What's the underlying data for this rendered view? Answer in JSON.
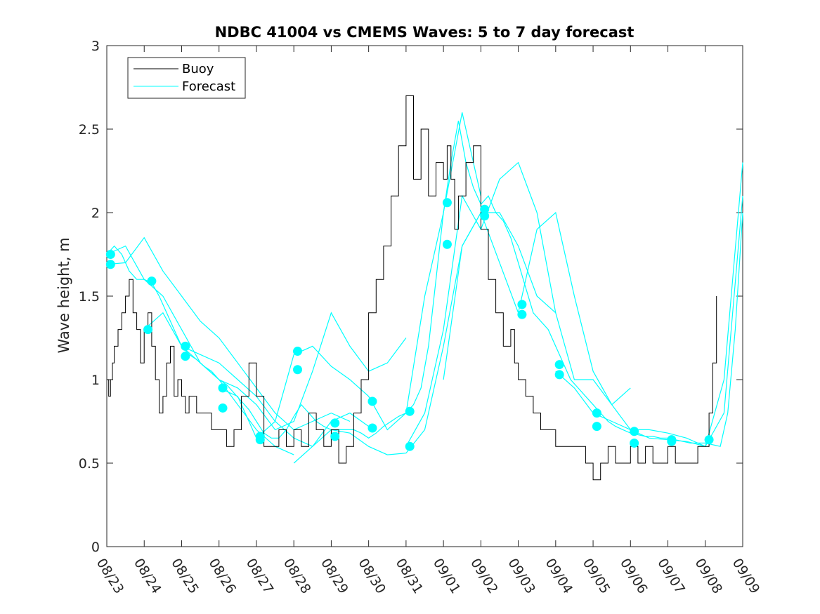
{
  "chart_data": {
    "type": "line",
    "title": "NDBC 41004 vs CMEMS Waves: 5 to 7 day forecast",
    "xlabel": "",
    "ylabel": "Wave height, m",
    "xlim": [
      0,
      17
    ],
    "ylim": [
      0,
      3
    ],
    "yticks": [
      0,
      0.5,
      1,
      1.5,
      2,
      2.5,
      3
    ],
    "ytick_labels": [
      "0",
      "0.5",
      "1",
      "1.5",
      "2",
      "2.5",
      "3"
    ],
    "xtick_labels": [
      "08/23",
      "08/24",
      "08/25",
      "08/26",
      "08/27",
      "08/28",
      "08/29",
      "08/30",
      "08/31",
      "09/01",
      "09/02",
      "09/03",
      "09/04",
      "09/05",
      "09/06",
      "09/07",
      "09/08",
      "09/09"
    ],
    "colors": {
      "buoy": "#000000",
      "forecast": "#00ffff",
      "axis": "#262626"
    },
    "legend": {
      "placement": "top-left",
      "entries": [
        "Buoy",
        "Forecast"
      ]
    },
    "series": [
      {
        "name": "Buoy",
        "x": [
          0,
          0.05,
          0.1,
          0.15,
          0.2,
          0.3,
          0.4,
          0.5,
          0.6,
          0.7,
          0.8,
          0.9,
          1.0,
          1.1,
          1.2,
          1.3,
          1.4,
          1.5,
          1.6,
          1.7,
          1.8,
          1.9,
          2.0,
          2.1,
          2.2,
          2.3,
          2.4,
          2.5,
          2.6,
          2.8,
          3.0,
          3.2,
          3.4,
          3.6,
          3.8,
          4.0,
          4.2,
          4.4,
          4.6,
          4.8,
          5.0,
          5.2,
          5.4,
          5.6,
          5.8,
          6.0,
          6.2,
          6.4,
          6.6,
          6.8,
          7.0,
          7.2,
          7.4,
          7.6,
          7.8,
          8.0,
          8.2,
          8.4,
          8.6,
          8.8,
          9.0,
          9.1,
          9.2,
          9.3,
          9.4,
          9.6,
          9.8,
          10.0,
          10.2,
          10.4,
          10.6,
          10.8,
          10.9,
          11.0,
          11.2,
          11.4,
          11.6,
          11.8,
          12.0,
          12.2,
          12.4,
          12.6,
          12.8,
          13.0,
          13.2,
          13.4,
          13.6,
          13.8,
          14.0,
          14.2,
          14.4,
          14.6,
          14.8,
          15.0,
          15.2,
          15.4,
          15.6,
          15.8,
          16.0,
          16.1,
          16.2,
          16.3
        ],
        "values": [
          1.0,
          0.9,
          1.0,
          1.1,
          1.2,
          1.3,
          1.4,
          1.5,
          1.6,
          1.4,
          1.3,
          1.1,
          1.3,
          1.4,
          1.2,
          1.0,
          0.8,
          0.9,
          1.1,
          1.2,
          0.9,
          1.0,
          0.9,
          0.8,
          0.9,
          0.9,
          0.8,
          0.8,
          0.8,
          0.7,
          0.7,
          0.6,
          0.7,
          0.9,
          1.1,
          0.9,
          0.6,
          0.6,
          0.7,
          0.6,
          0.7,
          0.6,
          0.8,
          0.7,
          0.6,
          0.7,
          0.5,
          0.6,
          0.8,
          1.0,
          1.4,
          1.6,
          1.8,
          2.1,
          2.4,
          2.7,
          2.2,
          2.5,
          2.1,
          2.3,
          2.2,
          2.4,
          2.2,
          1.9,
          2.1,
          2.3,
          2.4,
          1.9,
          1.6,
          1.4,
          1.2,
          1.3,
          1.1,
          1.0,
          0.9,
          0.8,
          0.7,
          0.7,
          0.6,
          0.6,
          0.6,
          0.6,
          0.5,
          0.4,
          0.5,
          0.6,
          0.5,
          0.5,
          0.6,
          0.5,
          0.6,
          0.5,
          0.5,
          0.6,
          0.5,
          0.5,
          0.5,
          0.6,
          0.6,
          0.8,
          1.1,
          1.5
        ]
      },
      {
        "name": "Forecast",
        "x": [
          0,
          0.2,
          0.4,
          0.6,
          0.8,
          1.0,
          1.2,
          1.4,
          1.6,
          1.8,
          2.0,
          2.2,
          2.4,
          2.6,
          2.8,
          3.0,
          3.2,
          3.4,
          3.6,
          3.8,
          4.0,
          4.2,
          4.4,
          4.6,
          4.8,
          5.0,
          5.2,
          5.4,
          5.6,
          5.8,
          6.0,
          6.2,
          6.4,
          6.6,
          6.8,
          7.0,
          7.2,
          7.4,
          7.6,
          7.8,
          8.0,
          8.2,
          8.4,
          8.6,
          8.8,
          9.0,
          9.2,
          9.4,
          9.6,
          9.8,
          10.0,
          10.2,
          10.4,
          10.6,
          10.8,
          11.0,
          11.2,
          11.4,
          11.6,
          11.8,
          12.0,
          12.2,
          12.4,
          12.6,
          12.8,
          13.0,
          13.2,
          13.4,
          13.6,
          13.8,
          14.0,
          14.2,
          14.4,
          14.6,
          14.8,
          15.0,
          15.2,
          15.4,
          15.6,
          15.8,
          16.0,
          16.2,
          16.4,
          16.6,
          16.8,
          17.0
        ],
        "values": [
          1.75,
          1.8,
          1.75,
          1.65,
          1.6,
          1.6,
          1.58,
          1.5,
          1.4,
          1.3,
          1.2,
          1.15,
          1.12,
          1.08,
          1.05,
          1.0,
          0.97,
          0.92,
          0.87,
          0.82,
          0.75,
          0.68,
          0.65,
          0.65,
          0.7,
          0.78,
          0.85,
          0.8,
          0.75,
          0.72,
          0.7,
          0.7,
          0.7,
          0.7,
          0.68,
          0.65,
          0.68,
          0.72,
          0.75,
          0.78,
          0.8,
          0.85,
          0.95,
          1.2,
          1.6,
          2.0,
          2.3,
          2.55,
          2.3,
          2.15,
          2.05,
          2.1,
          2.0,
          1.95,
          1.85,
          1.7,
          1.55,
          1.4,
          1.35,
          1.3,
          1.2,
          1.1,
          1.0,
          0.95,
          0.9,
          0.85,
          0.8,
          0.75,
          0.72,
          0.7,
          0.68,
          0.67,
          0.66,
          0.66,
          0.65,
          0.65,
          0.64,
          0.63,
          0.62,
          0.62,
          0.62,
          0.61,
          0.6,
          0.8,
          1.3,
          2.0
        ]
      }
    ],
    "forecast_runs": [
      {
        "name": "Forecast run 1",
        "x": [
          0,
          0.5,
          1.0,
          1.5,
          2.0,
          2.5,
          3.0,
          3.5,
          4.0,
          4.5,
          5.0
        ],
        "values": [
          1.75,
          1.8,
          1.6,
          1.5,
          1.3,
          1.1,
          1.0,
          0.85,
          0.7,
          0.6,
          0.55
        ]
      },
      {
        "name": "Forecast run 2",
        "x": [
          0,
          0.5,
          1.0,
          1.5,
          2.0,
          2.5,
          3.0,
          3.5,
          4.0,
          4.5,
          5.0,
          5.5,
          6.0,
          6.5
        ],
        "values": [
          1.69,
          1.7,
          1.85,
          1.65,
          1.5,
          1.35,
          1.25,
          1.1,
          0.95,
          0.8,
          0.7,
          0.75,
          0.8,
          0.75
        ]
      },
      {
        "name": "Forecast run 3",
        "x": [
          1.0,
          1.5,
          2.0,
          2.5,
          3.0,
          3.5,
          4.0,
          4.5,
          5.0,
          5.5,
          6.0,
          6.5,
          7.0
        ],
        "values": [
          1.3,
          1.4,
          1.2,
          1.15,
          1.1,
          1.0,
          0.9,
          0.75,
          0.65,
          0.6,
          0.75,
          0.8,
          0.72
        ]
      },
      {
        "name": "Forecast run 4",
        "x": [
          2.0,
          2.5,
          3.0,
          3.5,
          4.0,
          4.5,
          5.0,
          5.5,
          6.0,
          6.5,
          7.0,
          7.5,
          8.0
        ],
        "values": [
          1.2,
          1.1,
          1.0,
          0.95,
          0.85,
          0.7,
          0.75,
          1.05,
          1.4,
          1.2,
          1.05,
          1.1,
          1.25
        ]
      },
      {
        "name": "Forecast run 5",
        "x": [
          3.0,
          3.5,
          4.0,
          4.5,
          5.0,
          5.5,
          6.0,
          6.5,
          7.0,
          7.5,
          8.0,
          8.5,
          9.0,
          9.5,
          10.0
        ],
        "values": [
          0.95,
          0.9,
          0.65,
          0.75,
          1.15,
          1.2,
          1.08,
          1.0,
          0.9,
          0.7,
          0.8,
          1.5,
          2.0,
          2.6,
          2.1
        ]
      },
      {
        "name": "Forecast run 6",
        "x": [
          5.0,
          5.5,
          6.0,
          6.5,
          7.0,
          7.5,
          8.0,
          8.5,
          9.0,
          9.5,
          10.0,
          10.5,
          11.0,
          11.5,
          12.0
        ],
        "values": [
          0.5,
          0.6,
          0.7,
          0.68,
          0.6,
          0.55,
          0.56,
          0.7,
          1.2,
          1.8,
          2.0,
          2.0,
          1.8,
          1.5,
          1.4
        ]
      },
      {
        "name": "Forecast run 7",
        "x": [
          8.0,
          8.5,
          9.0,
          9.5,
          10.0,
          10.5,
          11.0,
          11.5,
          12.0,
          12.5,
          13.0,
          13.5,
          14.0
        ],
        "values": [
          0.6,
          0.8,
          1.3,
          2.1,
          1.9,
          2.2,
          2.3,
          2.0,
          1.4,
          1.0,
          1.0,
          0.85,
          0.95
        ]
      },
      {
        "name": "Forecast run 8",
        "x": [
          9.0,
          9.5,
          10.0,
          10.5,
          11.0,
          11.5,
          12.0,
          12.5,
          13.0,
          13.5,
          14.0,
          14.5,
          15.0,
          15.5,
          16.0,
          16.5,
          17.0
        ],
        "values": [
          1.0,
          1.8,
          2.0,
          1.7,
          1.4,
          1.9,
          2.0,
          1.5,
          1.05,
          0.85,
          0.7,
          0.7,
          0.68,
          0.65,
          0.6,
          0.8,
          2.1
        ]
      },
      {
        "name": "Forecast run 9",
        "x": [
          12.0,
          12.5,
          13.0,
          13.5,
          14.0,
          14.5,
          15.0,
          15.5,
          16.0,
          16.5,
          17.0
        ],
        "values": [
          1.05,
          0.95,
          0.8,
          0.75,
          0.7,
          0.65,
          0.64,
          0.63,
          0.6,
          1.0,
          2.3
        ]
      }
    ],
    "markers": {
      "name": "Forecast markers",
      "x": [
        0.1,
        0.1,
        1.1,
        1.2,
        2.1,
        2.1,
        3.1,
        3.1,
        4.1,
        4.1,
        5.1,
        5.1,
        6.1,
        6.1,
        7.1,
        7.1,
        8.1,
        8.1,
        9.1,
        9.1,
        10.1,
        10.1,
        11.1,
        11.1,
        12.1,
        12.1,
        13.1,
        13.1,
        14.1,
        14.1,
        15.1,
        15.1,
        16.1
      ],
      "values": [
        1.75,
        1.69,
        1.3,
        1.59,
        1.2,
        1.14,
        0.95,
        0.83,
        0.66,
        0.64,
        1.17,
        1.06,
        0.74,
        0.66,
        0.87,
        0.71,
        0.81,
        0.6,
        2.06,
        1.81,
        2.02,
        1.98,
        1.45,
        1.39,
        1.09,
        1.03,
        0.8,
        0.72,
        0.69,
        0.62,
        0.64,
        0.63,
        0.64
      ]
    }
  }
}
